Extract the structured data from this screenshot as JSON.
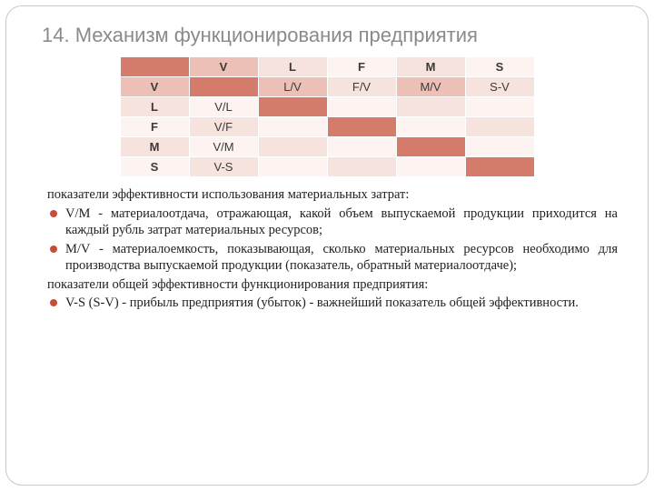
{
  "title": "14. Механизм функционирования предприятия",
  "table": {
    "type": "table",
    "cols": 6,
    "rows": 6,
    "colors": {
      "dark": "#d47b6c",
      "mid": "#edc0b7",
      "light": "#f7e3de",
      "faint": "#fdf3f0"
    },
    "cells": [
      [
        {
          "t": "",
          "c": "dark",
          "b": true
        },
        {
          "t": "V",
          "c": "mid",
          "b": true
        },
        {
          "t": "L",
          "c": "light",
          "b": true
        },
        {
          "t": "F",
          "c": "faint",
          "b": true
        },
        {
          "t": "M",
          "c": "light",
          "b": true
        },
        {
          "t": "S",
          "c": "faint",
          "b": true
        }
      ],
      [
        {
          "t": "V",
          "c": "mid",
          "b": true
        },
        {
          "t": "",
          "c": "dark"
        },
        {
          "t": "L/V",
          "c": "mid"
        },
        {
          "t": "F/V",
          "c": "light"
        },
        {
          "t": "M/V",
          "c": "mid"
        },
        {
          "t": "S-V",
          "c": "light"
        }
      ],
      [
        {
          "t": "L",
          "c": "light",
          "b": true
        },
        {
          "t": "V/L",
          "c": "faint"
        },
        {
          "t": "",
          "c": "dark"
        },
        {
          "t": "",
          "c": "faint"
        },
        {
          "t": "",
          "c": "light"
        },
        {
          "t": "",
          "c": "faint"
        }
      ],
      [
        {
          "t": "F",
          "c": "faint",
          "b": true
        },
        {
          "t": "V/F",
          "c": "light"
        },
        {
          "t": "",
          "c": "faint"
        },
        {
          "t": "",
          "c": "dark"
        },
        {
          "t": "",
          "c": "faint"
        },
        {
          "t": "",
          "c": "light"
        }
      ],
      [
        {
          "t": "M",
          "c": "light",
          "b": true
        },
        {
          "t": "V/M",
          "c": "faint"
        },
        {
          "t": "",
          "c": "light"
        },
        {
          "t": "",
          "c": "faint"
        },
        {
          "t": "",
          "c": "dark"
        },
        {
          "t": "",
          "c": "faint"
        }
      ],
      [
        {
          "t": "S",
          "c": "faint",
          "b": true
        },
        {
          "t": "V-S",
          "c": "light"
        },
        {
          "t": "",
          "c": "faint"
        },
        {
          "t": "",
          "c": "light"
        },
        {
          "t": "",
          "c": "faint"
        },
        {
          "t": "",
          "c": "dark"
        }
      ]
    ]
  },
  "body": [
    {
      "type": "para",
      "text": "показатели эффективности использования материальных затрат:"
    },
    {
      "type": "li",
      "text": "V/M - материалоотдача, отражающая, какой объем выпускаемой продукции приходится на каждый рубль затрат материальных ресурсов;"
    },
    {
      "type": "li",
      "text": "M/V - материалоемкость, показывающая, сколько материальных ресурсов необходимо для производства выпускаемой продукции (показатель, обратный материалоотдаче);"
    },
    {
      "type": "para",
      "text": "показатели общей эффективности функционирования предприятия:"
    },
    {
      "type": "li",
      "text": "V-S (S-V) - прибыль предприятия (убыток) - важнейший показатель общей эффективности."
    }
  ]
}
